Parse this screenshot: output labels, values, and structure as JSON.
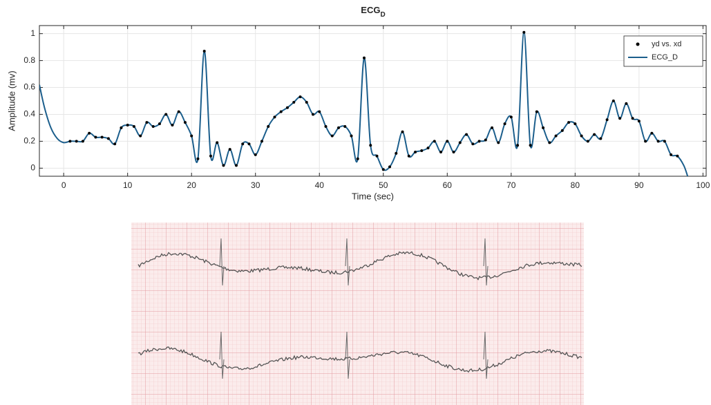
{
  "chart_data": {
    "type": "line",
    "title": "ECG",
    "title_subscript": "D",
    "x_label": "Time (sec)",
    "y_label": "Amplitude (mv)",
    "xlim": [
      -3.8,
      100.5
    ],
    "ylim": [
      -0.06,
      1.06
    ],
    "xticks": [
      0,
      10,
      20,
      30,
      40,
      50,
      60,
      70,
      80,
      90,
      100
    ],
    "yticks": [
      0,
      0.2,
      0.4,
      0.6,
      0.8,
      1
    ],
    "grid": true,
    "legend": "top-right",
    "series": [
      {
        "name": "yd vs. xd",
        "style": "markers",
        "color": "#000000",
        "x": [
          1,
          2,
          3,
          4,
          5,
          6,
          7,
          8,
          9,
          10,
          11,
          12,
          13,
          14,
          15,
          16,
          17,
          18,
          19,
          20,
          21,
          22,
          23,
          24,
          25,
          26,
          27,
          28,
          29,
          30,
          31,
          32,
          33,
          34,
          35,
          36,
          37,
          38,
          39,
          40,
          41,
          42,
          43,
          44,
          45,
          46,
          47,
          48,
          49,
          50,
          51,
          52,
          53,
          54,
          55,
          56,
          57,
          58,
          59,
          60,
          61,
          62,
          63,
          64,
          65,
          66,
          67,
          68,
          69,
          70,
          71,
          72,
          73,
          74,
          75,
          76,
          77,
          78,
          79,
          80,
          81,
          82,
          83,
          84,
          85,
          86,
          87,
          88,
          89,
          90,
          91,
          92,
          93,
          94,
          95,
          96
        ],
        "values": [
          0.2,
          0.2,
          0.2,
          0.26,
          0.23,
          0.23,
          0.22,
          0.18,
          0.3,
          0.32,
          0.31,
          0.24,
          0.34,
          0.31,
          0.33,
          0.4,
          0.32,
          0.42,
          0.34,
          0.24,
          0.07,
          0.87,
          0.09,
          0.19,
          0.02,
          0.14,
          0.02,
          0.18,
          0.18,
          0.1,
          0.2,
          0.31,
          0.38,
          0.42,
          0.45,
          0.49,
          0.53,
          0.49,
          0.4,
          0.42,
          0.31,
          0.24,
          0.3,
          0.31,
          0.24,
          0.07,
          0.82,
          0.17,
          0.09,
          -0.01,
          0.01,
          0.11,
          0.27,
          0.09,
          0.12,
          0.13,
          0.15,
          0.2,
          0.12,
          0.2,
          0.12,
          0.19,
          0.25,
          0.18,
          0.2,
          0.21,
          0.3,
          0.19,
          0.33,
          0.38,
          0.17,
          1.01,
          0.17,
          0.42,
          0.3,
          0.19,
          0.24,
          0.28,
          0.34,
          0.33,
          0.24,
          0.2,
          0.25,
          0.22,
          0.36,
          0.5,
          0.37,
          0.48,
          0.37,
          0.35,
          0.2,
          0.26,
          0.2,
          0.2,
          0.1,
          0.09
        ]
      },
      {
        "name": "ECG_D",
        "style": "line",
        "color": "#1b5e8c",
        "x": [
          -3.8,
          -3,
          -2,
          -1,
          0,
          1,
          2,
          3,
          4,
          5,
          6,
          7,
          8,
          9,
          10,
          11,
          12,
          13,
          14,
          15,
          16,
          17,
          18,
          19,
          20,
          21,
          22,
          23,
          24,
          25,
          26,
          27,
          28,
          29,
          30,
          31,
          32,
          33,
          34,
          35,
          36,
          37,
          38,
          39,
          40,
          41,
          42,
          43,
          44,
          45,
          46,
          47,
          48,
          49,
          50,
          51,
          52,
          53,
          54,
          55,
          56,
          57,
          58,
          59,
          60,
          61,
          62,
          63,
          64,
          65,
          66,
          67,
          68,
          69,
          70,
          71,
          72,
          73,
          74,
          75,
          76,
          77,
          78,
          79,
          80,
          81,
          82,
          83,
          84,
          85,
          86,
          87,
          88,
          89,
          90,
          91,
          92,
          93,
          94,
          95,
          96,
          97,
          97.6
        ],
        "values": [
          0.62,
          0.45,
          0.3,
          0.22,
          0.19,
          0.2,
          0.2,
          0.2,
          0.26,
          0.23,
          0.23,
          0.22,
          0.18,
          0.3,
          0.32,
          0.31,
          0.24,
          0.34,
          0.31,
          0.33,
          0.4,
          0.32,
          0.42,
          0.34,
          0.24,
          0.07,
          0.87,
          0.09,
          0.19,
          0.02,
          0.14,
          0.02,
          0.18,
          0.18,
          0.1,
          0.2,
          0.31,
          0.38,
          0.42,
          0.45,
          0.49,
          0.53,
          0.49,
          0.4,
          0.42,
          0.31,
          0.24,
          0.3,
          0.31,
          0.24,
          0.07,
          0.82,
          0.17,
          0.09,
          -0.01,
          0.01,
          0.11,
          0.27,
          0.09,
          0.12,
          0.13,
          0.15,
          0.2,
          0.12,
          0.2,
          0.12,
          0.19,
          0.25,
          0.18,
          0.2,
          0.21,
          0.3,
          0.19,
          0.33,
          0.38,
          0.17,
          1.01,
          0.17,
          0.42,
          0.3,
          0.19,
          0.24,
          0.28,
          0.34,
          0.33,
          0.24,
          0.2,
          0.25,
          0.22,
          0.36,
          0.5,
          0.37,
          0.48,
          0.37,
          0.35,
          0.2,
          0.26,
          0.2,
          0.2,
          0.1,
          0.09,
          0.02,
          -0.06
        ]
      }
    ]
  }
}
